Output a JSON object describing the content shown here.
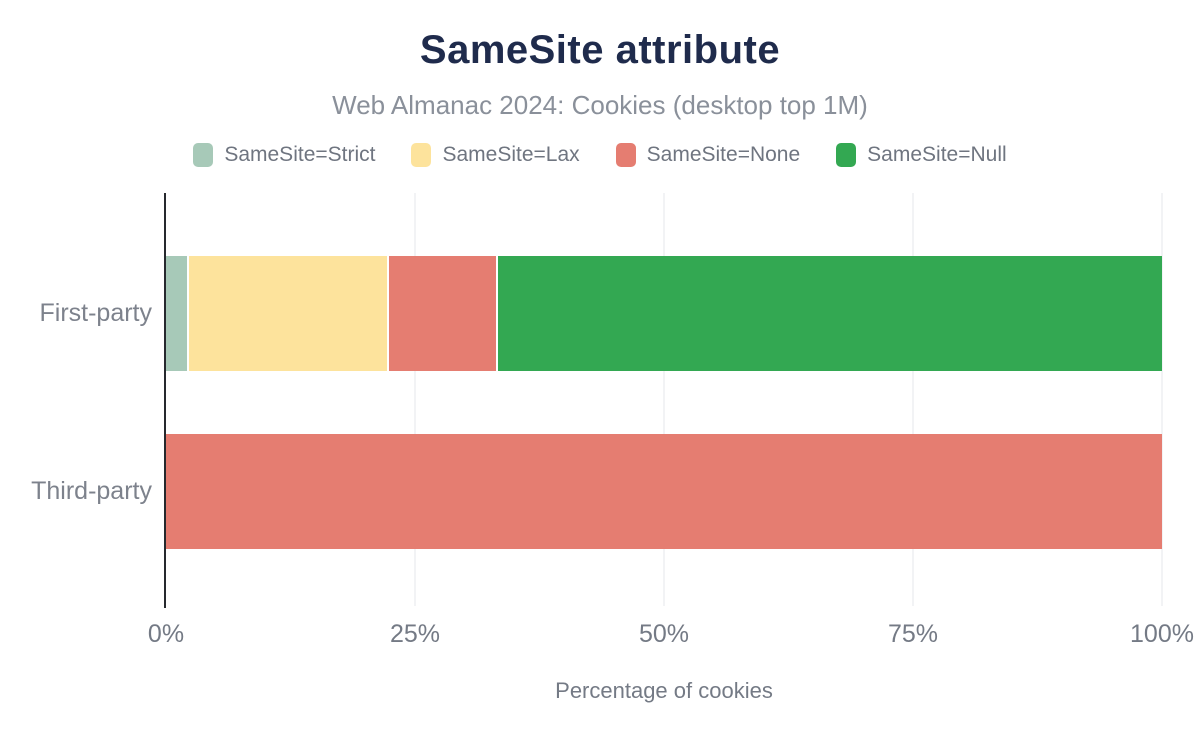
{
  "title": "SameSite attribute",
  "subtitle": "Web Almanac 2024: Cookies (desktop top 1M)",
  "chart_data": {
    "type": "bar",
    "orientation": "horizontal",
    "stacked": true,
    "title": "SameSite attribute",
    "subtitle": "Web Almanac 2024: Cookies (desktop top 1M)",
    "xlabel": "Percentage of cookies",
    "ylabel": "",
    "xlim": [
      0,
      100
    ],
    "x_ticks": [
      "0%",
      "25%",
      "50%",
      "75%",
      "100%"
    ],
    "x_tick_values": [
      0,
      25,
      50,
      75,
      100
    ],
    "grid": "vertical",
    "legend_position": "top",
    "categories": [
      "First-party",
      "Third-party"
    ],
    "series": [
      {
        "name": "SameSite=Strict",
        "color": "#a7c9b8",
        "values": [
          2.1,
          0
        ]
      },
      {
        "name": "SameSite=Lax",
        "color": "#fde39c",
        "values": [
          20.1,
          0
        ]
      },
      {
        "name": "SameSite=None",
        "color": "#e57d71",
        "values": [
          10.9,
          100
        ]
      },
      {
        "name": "SameSite=Null",
        "color": "#33a852",
        "values": [
          66.9,
          0
        ]
      }
    ]
  },
  "colors": {
    "title": "#1f2b4c",
    "subtitle": "#8a909a",
    "axis_text": "#747a85",
    "legend_text": "#6f7580",
    "axis_line": "#26292e",
    "gridline": "#f2f3f5",
    "background": "#ffffff"
  }
}
